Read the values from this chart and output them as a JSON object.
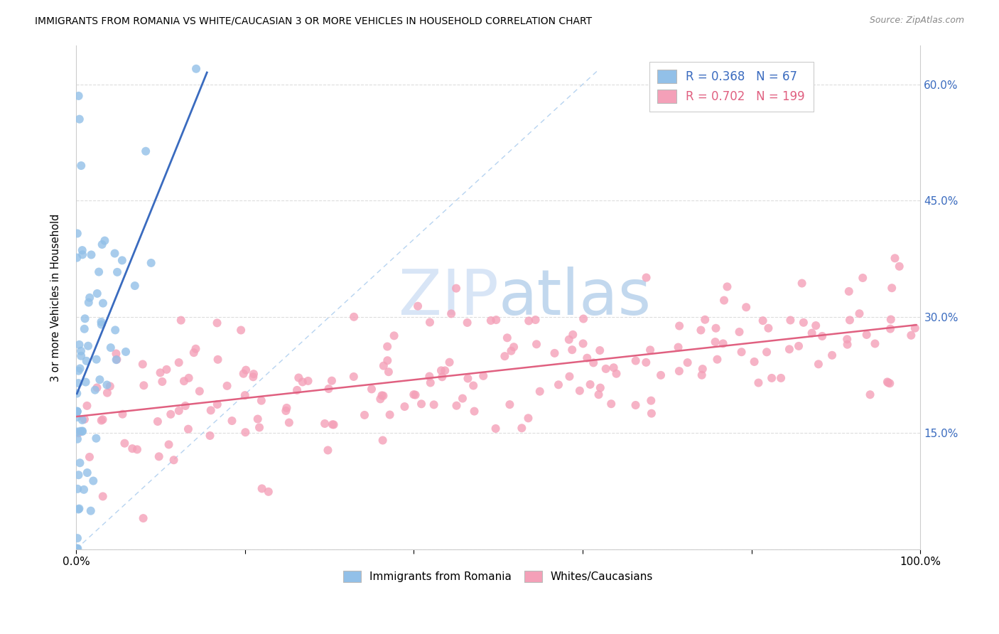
{
  "title": "IMMIGRANTS FROM ROMANIA VS WHITE/CAUCASIAN 3 OR MORE VEHICLES IN HOUSEHOLD CORRELATION CHART",
  "source": "Source: ZipAtlas.com",
  "ylabel": "3 or more Vehicles in Household",
  "xlim": [
    0,
    1.0
  ],
  "ylim": [
    0,
    0.65
  ],
  "legend_R1": "0.368",
  "legend_N1": "67",
  "legend_R2": "0.702",
  "legend_N2": "199",
  "color_blue": "#92C0E8",
  "color_pink": "#F4A0B8",
  "color_blue_line": "#3A6BBF",
  "color_pink_line": "#E06080",
  "color_blue_text": "#3A6BBF",
  "color_pink_text": "#E06080",
  "color_axis_label": "#3A6BBF",
  "grid_color": "#DDDDDD",
  "bg_color": "#FFFFFF"
}
